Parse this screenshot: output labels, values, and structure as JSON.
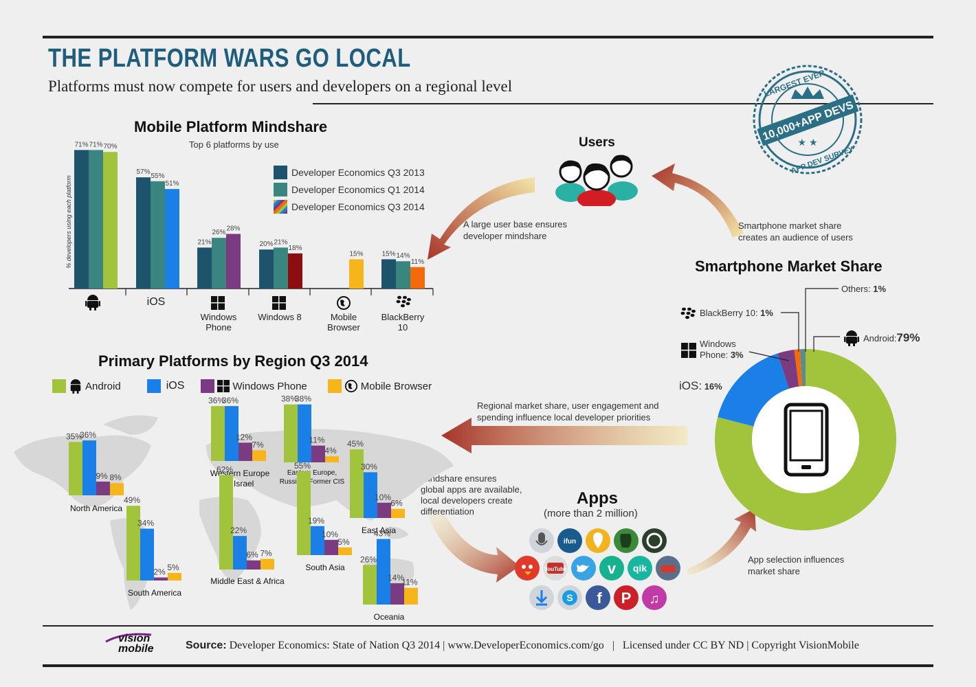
{
  "header": {
    "title": "THE PLATFORM WARS GO LOCAL",
    "subtitle": "Platforms must now compete for users and developers on a regional level"
  },
  "badge": {
    "top": "LARGEST EVER",
    "main": "10,000+APP DEVS",
    "bottom": "APP DEV SURVEY"
  },
  "colors": {
    "q3_2013": "#1e536e",
    "q1_2014": "#3b8580",
    "android": "#a2c43c",
    "ios": "#1a7fe6",
    "windows": "#7a3b80",
    "windows8": "#8b0f10",
    "browser": "#f5b51b",
    "blackberry": "#f36a0d",
    "others": "#5e8d89",
    "arrow_dark": "#a6342a",
    "arrow_light": "#f3e6a8"
  },
  "cycle": {
    "users_title": "Users",
    "apps_title": "Apps",
    "apps_subtitle": "(more than 2 million)",
    "text_users_to_devs": [
      "A large user base ensures",
      "developer mindshare"
    ],
    "text_share_to_users": [
      "Smartphone market share",
      "creates an audience of users"
    ],
    "text_share_to_region": [
      "Regional market share, user engagement and",
      "spending influence local developer priorities"
    ],
    "text_mindshare_to_apps": [
      "Mindshare ensures",
      "global apps are available,",
      "local developers create",
      "differentiation"
    ],
    "text_apps_to_share": [
      "App selection influences",
      "market share"
    ],
    "app_icons": [
      "microphone-icon",
      "ifun-icon",
      "location-pin-icon",
      "evernote-icon",
      "whatsapp-icon",
      "angry-birds-icon",
      "youtube-icon",
      "twitter-icon",
      "vine-icon",
      "qik-icon",
      "racing-game-icon",
      "download-icon",
      "skype-icon",
      "facebook-icon",
      "pinterest-icon",
      "music-icon"
    ],
    "app_icon_text": {
      "ifun": "ifun",
      "youtube": "You\nTube",
      "qik": "qik"
    }
  },
  "footer": {
    "logo_top": "vision",
    "logo_bottom": "mobile",
    "source_label": "Source:",
    "source_text": "Developer Economics: State of Nation Q3 2014 | www.DeveloperEconomics.com/go   |   Licensed under CC BY ND | Copyright VisionMobile"
  },
  "chart_data": [
    {
      "type": "bar",
      "title": "Mobile Platform Mindshare",
      "subtitle": "Top 6 platforms by use",
      "ylabel": "% developers using each platform",
      "ylim": [
        0,
        75
      ],
      "categories": [
        "Android",
        "iOS",
        "Windows Phone",
        "Windows 8",
        "Mobile Browser",
        "BlackBerry 10"
      ],
      "category_labels": [
        "",
        "iOS",
        "Windows\nPhone",
        "Windows 8",
        "Mobile\nBrowser",
        "BlackBerry\n10"
      ],
      "series": [
        {
          "name": "Developer Economics Q3 2013",
          "values": [
            71,
            57,
            21,
            20,
            null,
            15
          ]
        },
        {
          "name": "Developer Economics Q1 2014",
          "values": [
            71,
            55,
            26,
            21,
            null,
            14
          ]
        },
        {
          "name": "Developer Economics Q3 2014",
          "values": [
            70,
            51,
            28,
            18,
            15,
            11
          ]
        }
      ],
      "legend_position": "top-right"
    },
    {
      "type": "pie",
      "title": "Smartphone Market Share",
      "slices": [
        {
          "label": "Android:",
          "value": 79
        },
        {
          "label": "iOS:",
          "value": 16
        },
        {
          "label": "Windows Phone:",
          "value": 3
        },
        {
          "label": "BlackBerry 10:",
          "value": 1
        },
        {
          "label": "Others:",
          "value": 1
        }
      ]
    },
    {
      "type": "bar",
      "title": "Primary Platforms by Region Q3 2014",
      "series_names": [
        "Android",
        "iOS",
        "Windows Phone",
        "Mobile Browser"
      ],
      "regions": [
        {
          "name": "North America",
          "values": [
            35,
            36,
            9,
            8
          ]
        },
        {
          "name": "Western Europe\n& Israel",
          "values": [
            36,
            36,
            12,
            7
          ]
        },
        {
          "name": "Eastern Europe,\nRussia & Former CIS",
          "values": [
            38,
            38,
            11,
            4
          ]
        },
        {
          "name": "East Asia",
          "values": [
            45,
            30,
            10,
            6
          ]
        },
        {
          "name": "South America",
          "values": [
            49,
            34,
            2,
            5
          ]
        },
        {
          "name": "Middle East & Africa",
          "values": [
            62,
            22,
            6,
            7
          ]
        },
        {
          "name": "South Asia",
          "values": [
            55,
            19,
            10,
            5
          ]
        },
        {
          "name": "Oceania",
          "values": [
            26,
            43,
            14,
            11
          ]
        }
      ],
      "legend_position": "top-left"
    }
  ]
}
